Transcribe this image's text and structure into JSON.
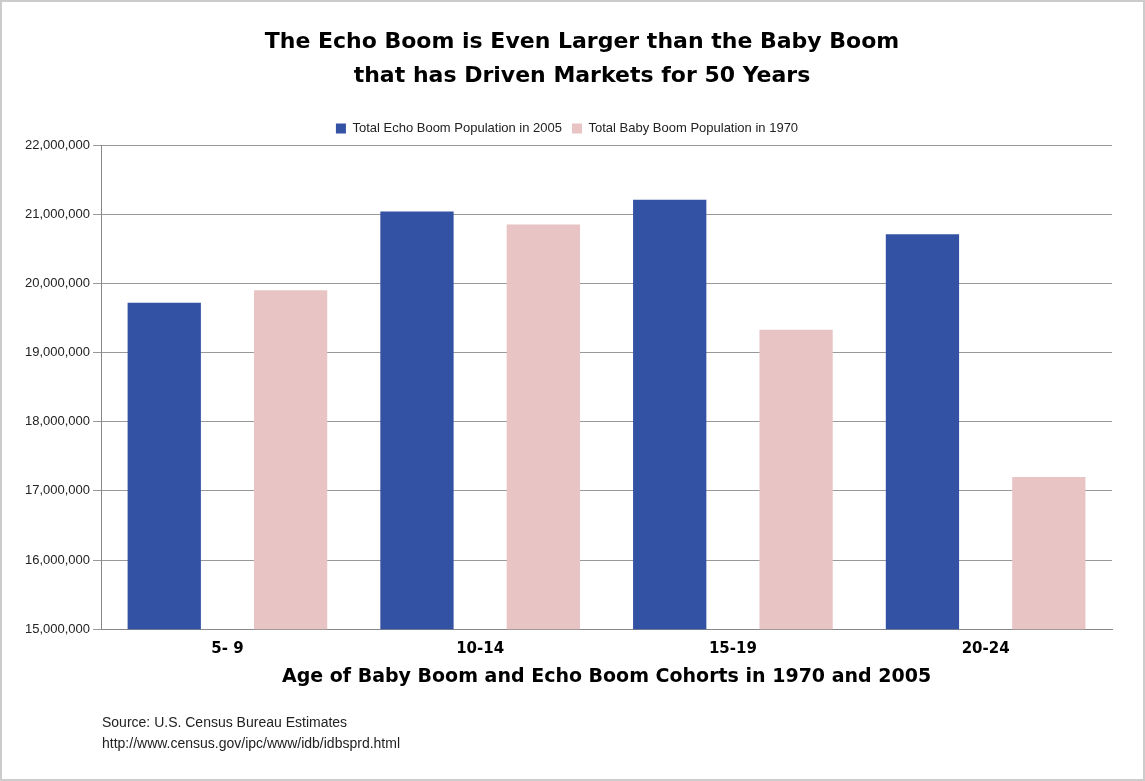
{
  "chart_data": {
    "type": "bar",
    "title": "The Echo Boom is Even Larger than the Baby Boom that has Driven Markets for 50 Years",
    "xlabel": "Age of Baby Boom and Echo Boom Cohorts in 1970 and 2005",
    "categories": [
      "5- 9",
      "10-14",
      "15-19",
      "20-24"
    ],
    "series": [
      {
        "name": "Total Echo Boom Population in 2005",
        "color": "#3352a3",
        "values": [
          19720000,
          21040000,
          21210000,
          20710000
        ]
      },
      {
        "name": "Total Baby Boom Population in 1970",
        "color": "#e8c4c4",
        "values": [
          19900000,
          20850000,
          19330000,
          17200000
        ]
      }
    ],
    "ylim": [
      15000000,
      22000000
    ],
    "yticks": [
      {
        "value": 15000000,
        "label": "15,000,000"
      },
      {
        "value": 16000000,
        "label": "16,000,000"
      },
      {
        "value": 17000000,
        "label": "17,000,000"
      },
      {
        "value": 18000000,
        "label": "18,000,000"
      },
      {
        "value": 19000000,
        "label": "19,000,000"
      },
      {
        "value": 20000000,
        "label": "20,000,000"
      },
      {
        "value": 21000000,
        "label": "21,000,000"
      },
      {
        "value": 22000000,
        "label": "22,000,000"
      }
    ],
    "grid": "y",
    "legend": "top",
    "annotations": [
      "Source: U.S. Census Bureau Estimates",
      "http://www.census.gov/ipc/www/idb/idbsprd.html"
    ]
  }
}
